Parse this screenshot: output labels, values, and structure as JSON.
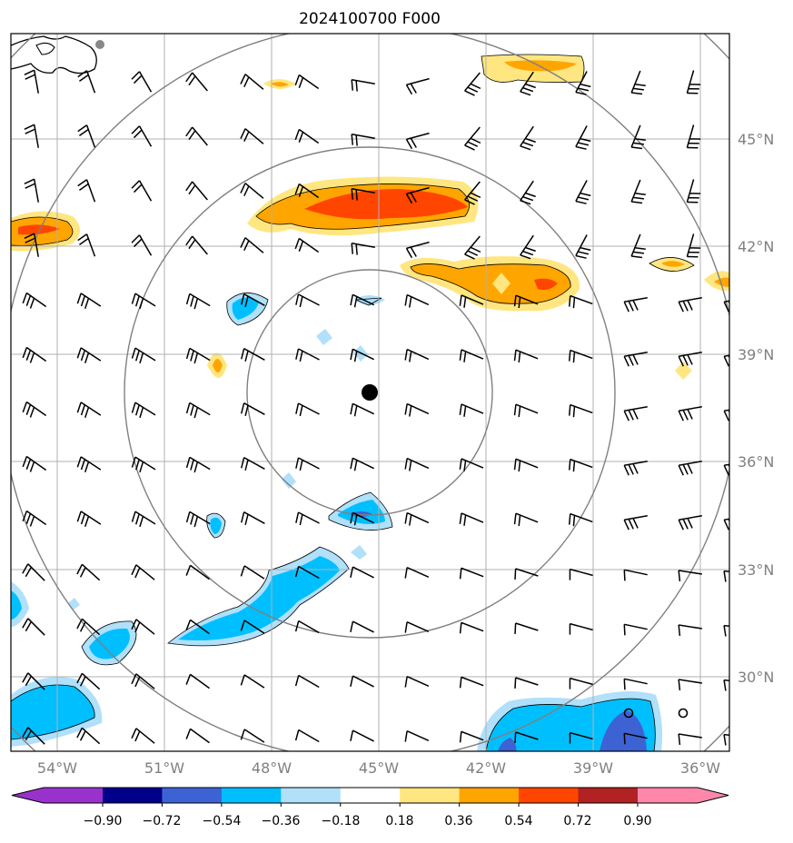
{
  "chart_data": {
    "type": "map",
    "title": "2024100700 F000",
    "x_ticks": [
      "54°W",
      "51°W",
      "48°W",
      "45°W",
      "42°W",
      "39°W",
      "36°W"
    ],
    "y_ticks": [
      "45°N",
      "42°N",
      "39°N",
      "36°N",
      "33°N",
      "30°N"
    ],
    "lon_range": [
      -55.2,
      -35.1
    ],
    "lat_range": [
      28.0,
      48.0
    ],
    "grid": true,
    "center": {
      "lon": -45.0,
      "lat": 37.9
    },
    "colorbar": {
      "ticks": [
        "−0.90",
        "−0.72",
        "−0.54",
        "−0.36",
        "−0.18",
        "0.18",
        "0.36",
        "0.54",
        "0.72",
        "0.90"
      ],
      "colors": [
        "#9932cc",
        "#00008b",
        "#3d62d4",
        "#00bfff",
        "#b0e0fa",
        "#ffffff",
        "#ffe680",
        "#ffa500",
        "#ff4500",
        "#b22222",
        "#ff88aa"
      ]
    }
  }
}
